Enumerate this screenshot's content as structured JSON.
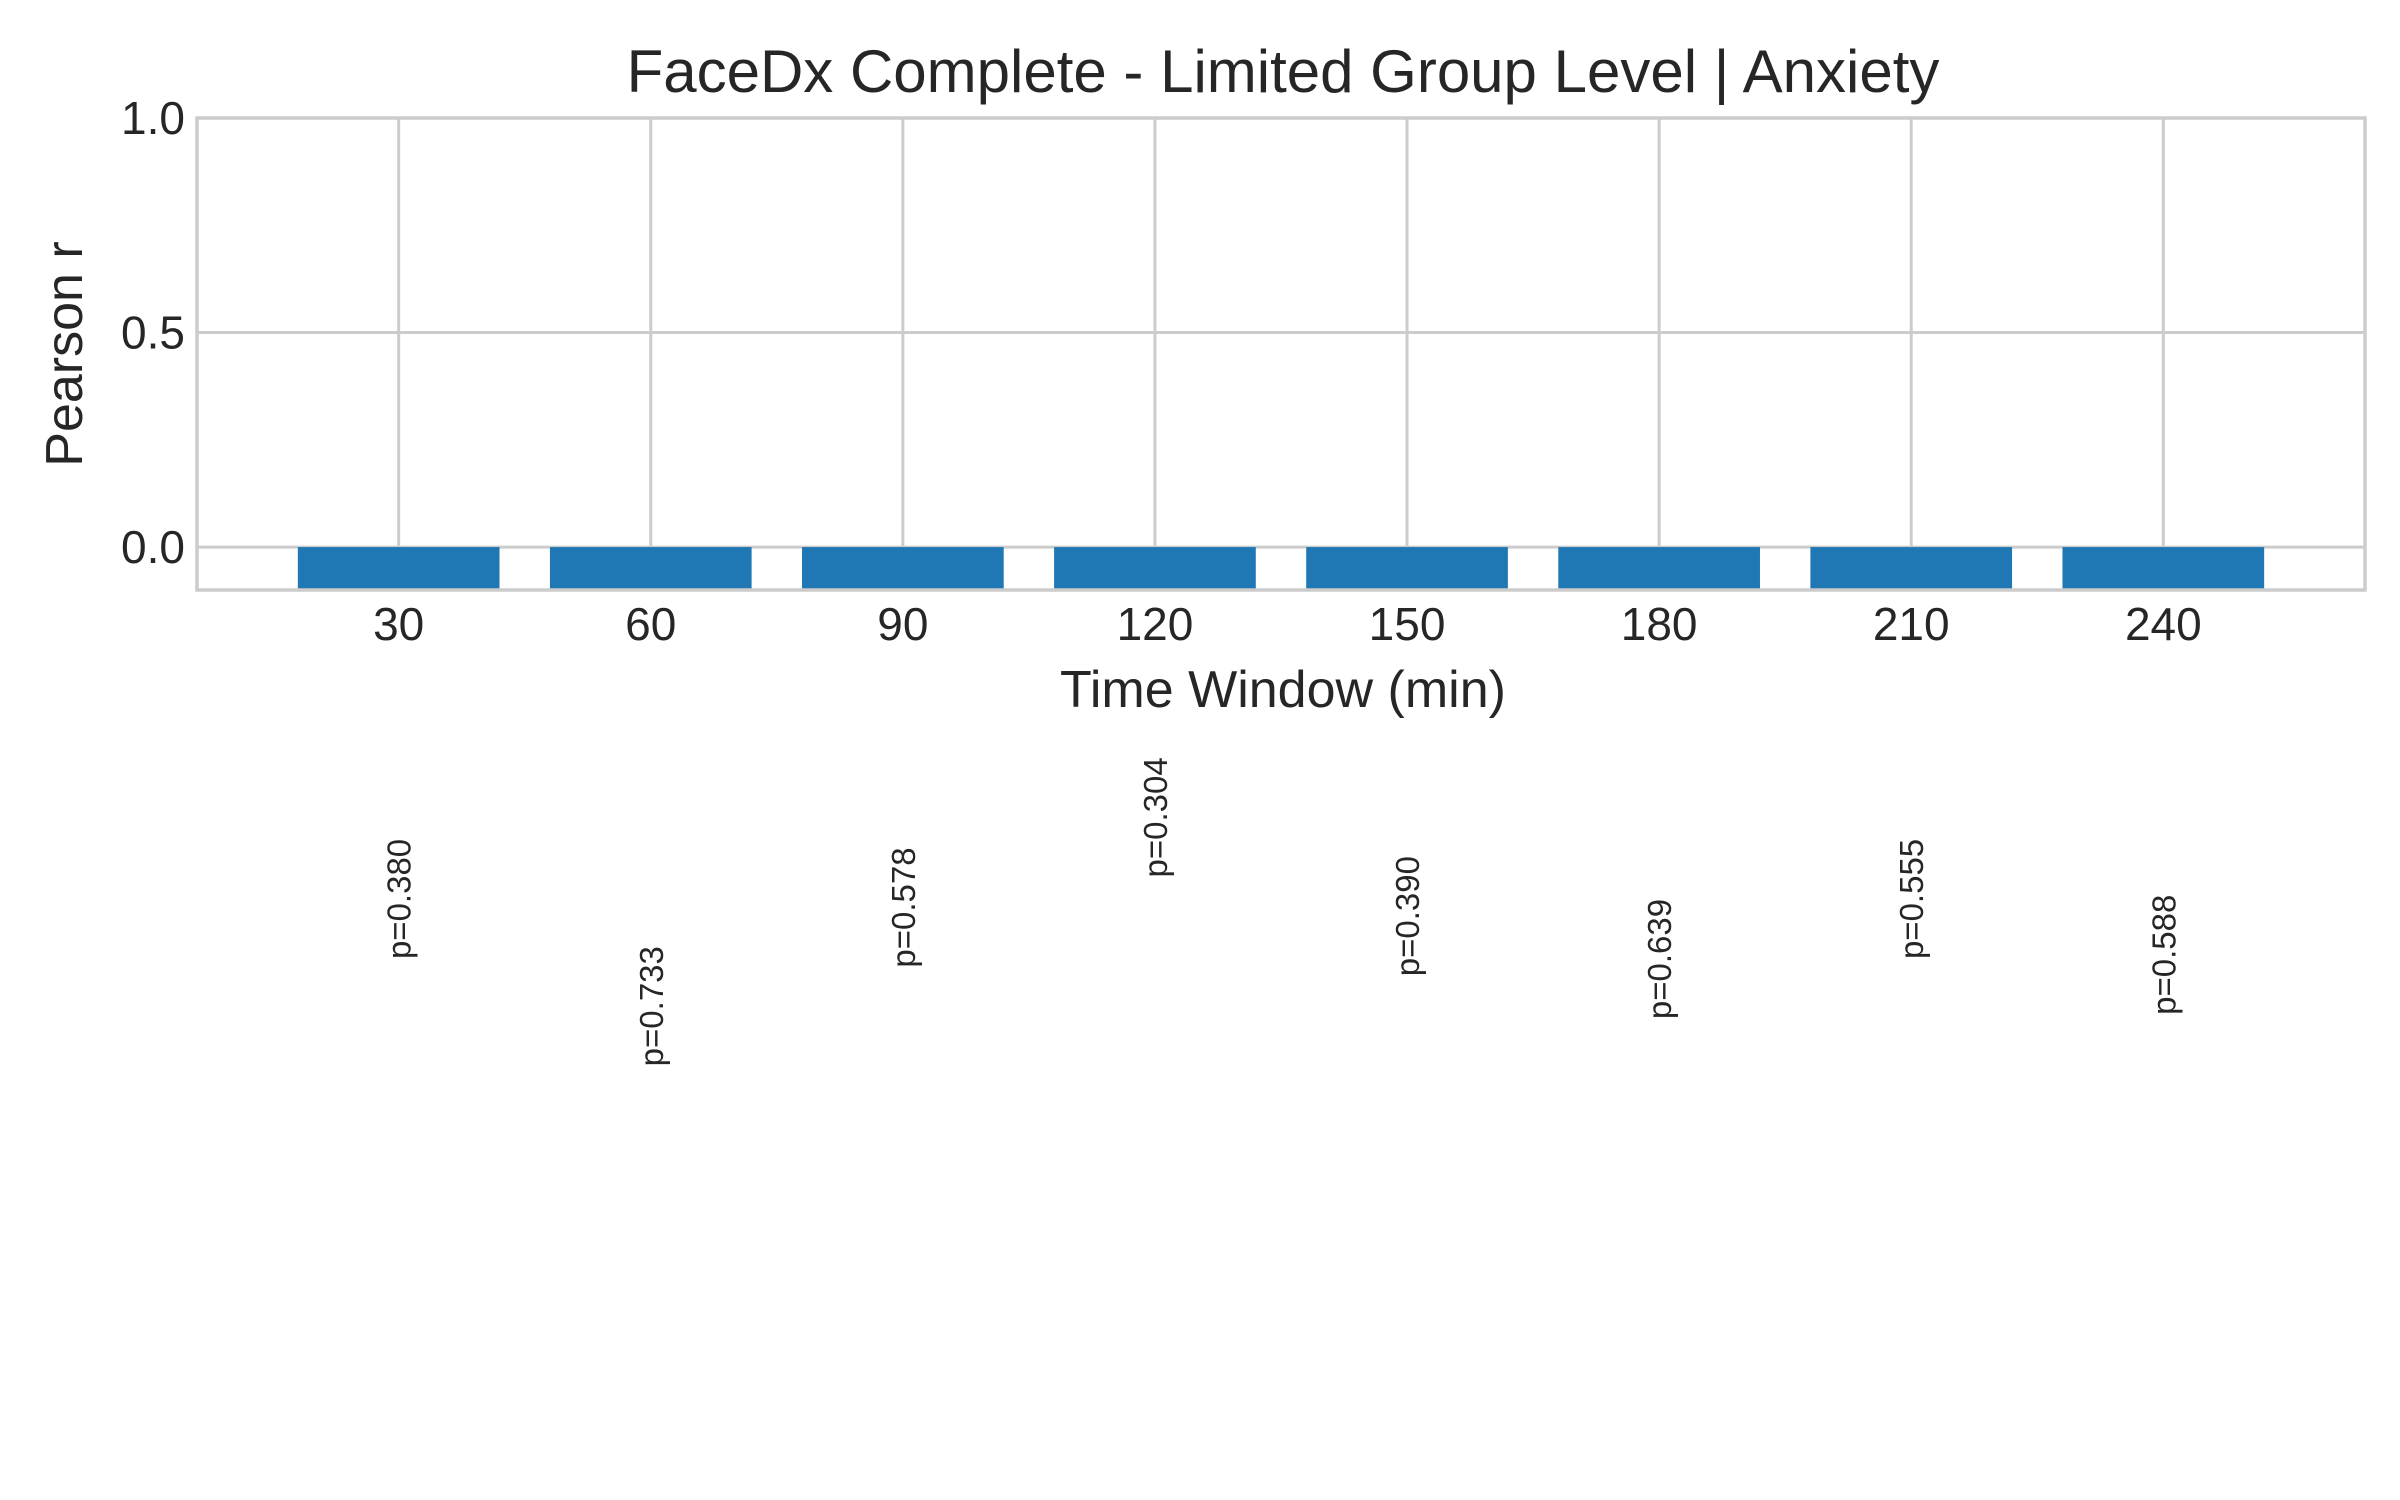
{
  "chart_data": {
    "type": "bar",
    "title": "FaceDx Complete - Limited Group Level | Anxiety",
    "xlabel": "Time Window (min)",
    "ylabel": "Pearson r",
    "categories": [
      "30",
      "60",
      "90",
      "120",
      "150",
      "180",
      "210",
      "240"
    ],
    "values": [
      -0.1,
      -0.1,
      -0.1,
      -0.1,
      -0.1,
      -0.1,
      -0.1,
      -0.1
    ],
    "p_labels": [
      "p=0.380",
      "p=0.733",
      "p=0.578",
      "p=0.304",
      "p=0.390",
      "p=0.639",
      "p=0.555",
      "p=0.588"
    ],
    "p_label_y": [
      -0.82,
      -1.07,
      -0.84,
      -0.63,
      -0.86,
      -0.96,
      -0.82,
      -0.95
    ],
    "ylim": [
      -0.1,
      1.0
    ],
    "yticks": [
      0.0,
      0.5,
      1.0
    ],
    "ytick_labels": [
      "0.0",
      "0.5",
      "1.0"
    ],
    "grid": true,
    "bar_color": "#1f77b4"
  }
}
